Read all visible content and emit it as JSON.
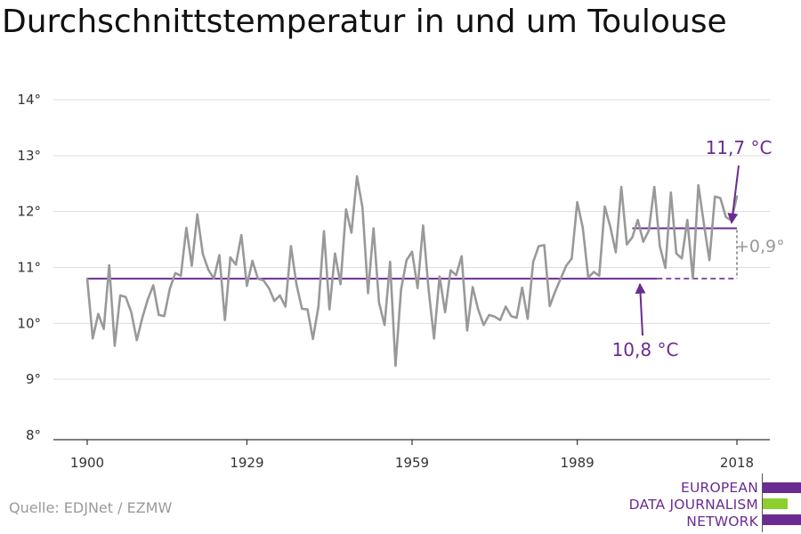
{
  "title": "Durchschnittstemperatur in und um Toulouse",
  "source": "Quelle: EDJNet / EZMW",
  "logo": {
    "lines": [
      "EUROPEAN",
      "DATA JOURNALISM",
      "NETWORK"
    ],
    "colors": {
      "purple": "#6a2c91",
      "green": "#8ccf2f"
    }
  },
  "colors": {
    "series": "#999999",
    "baseline": "#6a2c91",
    "grid": "#dddddd",
    "axis": "#333333",
    "diff": "#999999"
  },
  "chart_data": {
    "type": "line",
    "title": "Durchschnittstemperatur in und um Toulouse",
    "xlim": [
      1900,
      2018
    ],
    "ylim": [
      8,
      14
    ],
    "x_ticks": [
      1900,
      1929,
      1959,
      1989,
      2018
    ],
    "x_tick_labels": [
      "1900",
      "1929",
      "1959",
      "1989",
      "2018"
    ],
    "y_ticks": [
      8,
      9,
      10,
      11,
      12,
      13,
      14
    ],
    "y_tick_labels": [
      "8°",
      "9°",
      "10°",
      "11°",
      "12°",
      "13°",
      "14°"
    ],
    "grid": true,
    "series": [
      {
        "x": [
          1900,
          1901,
          1902,
          1903,
          1904,
          1905,
          1906,
          1907,
          1908,
          1909,
          1910,
          1911,
          1912,
          1913,
          1914,
          1915,
          1916,
          1917,
          1918,
          1919,
          1920,
          1921,
          1922,
          1923,
          1924,
          1925,
          1926,
          1927,
          1928,
          1929,
          1930,
          1931,
          1932,
          1933,
          1934,
          1935,
          1936,
          1937,
          1938,
          1939,
          1940,
          1941,
          1942,
          1943,
          1944,
          1945,
          1946,
          1947,
          1948,
          1949,
          1950,
          1951,
          1952,
          1953,
          1954,
          1955,
          1956,
          1957,
          1958,
          1959,
          1960,
          1961,
          1962,
          1963,
          1964,
          1965,
          1966,
          1967,
          1968,
          1969,
          1970,
          1971,
          1972,
          1973,
          1974,
          1975,
          1976,
          1977,
          1978,
          1979,
          1980,
          1981,
          1982,
          1983,
          1984,
          1985,
          1986,
          1987,
          1988,
          1989,
          1990,
          1991,
          1992,
          1993,
          1994,
          1995,
          1996,
          1997,
          1998,
          1999,
          2000,
          2001,
          2002,
          2003,
          2004,
          2005,
          2006,
          2007,
          2008,
          2009,
          2010,
          2011,
          2012,
          2013,
          2014,
          2015,
          2016,
          2017,
          2018
        ],
        "values": [
          10.8,
          9.73,
          10.17,
          9.9,
          11.04,
          9.6,
          10.5,
          10.47,
          10.2,
          9.7,
          10.1,
          10.43,
          10.68,
          10.15,
          10.13,
          10.62,
          10.9,
          10.85,
          11.71,
          11.03,
          11.95,
          11.24,
          10.96,
          10.8,
          11.22,
          10.06,
          11.18,
          11.05,
          11.58,
          10.67,
          11.12,
          10.8,
          10.77,
          10.63,
          10.4,
          10.5,
          10.3,
          11.38,
          10.7,
          10.26,
          10.25,
          9.72,
          10.3,
          11.65,
          10.25,
          11.25,
          10.7,
          12.04,
          11.62,
          12.63,
          12.07,
          10.54,
          11.7,
          10.37,
          9.97,
          11.1,
          9.24,
          10.6,
          11.13,
          11.28,
          10.63,
          11.75,
          10.6,
          9.73,
          10.84,
          10.2,
          10.95,
          10.86,
          11.2,
          9.87,
          10.65,
          10.25,
          9.97,
          10.15,
          10.12,
          10.06,
          10.3,
          10.13,
          10.1,
          10.64,
          10.08,
          11.1,
          11.38,
          11.4,
          10.31,
          10.57,
          10.8,
          11.03,
          11.16,
          12.17,
          11.71,
          10.82,
          10.92,
          10.85,
          12.09,
          11.73,
          11.27,
          12.44,
          11.41,
          11.54,
          11.85,
          11.46,
          11.66,
          12.44,
          11.38,
          10.99,
          12.34,
          11.25,
          11.16,
          11.85,
          10.8,
          12.47,
          11.78,
          11.13,
          12.27,
          12.24,
          11.9,
          11.84,
          12.27
        ]
      }
    ],
    "annotations": {
      "baseline": {
        "value": 10.8,
        "from": 1900,
        "to": 2018,
        "label": "10,8 °C"
      },
      "recent": {
        "value": 11.7,
        "from": 1999,
        "to": 2018,
        "label": "11,7 °C"
      },
      "difference": {
        "label": "+0,9°"
      }
    }
  }
}
